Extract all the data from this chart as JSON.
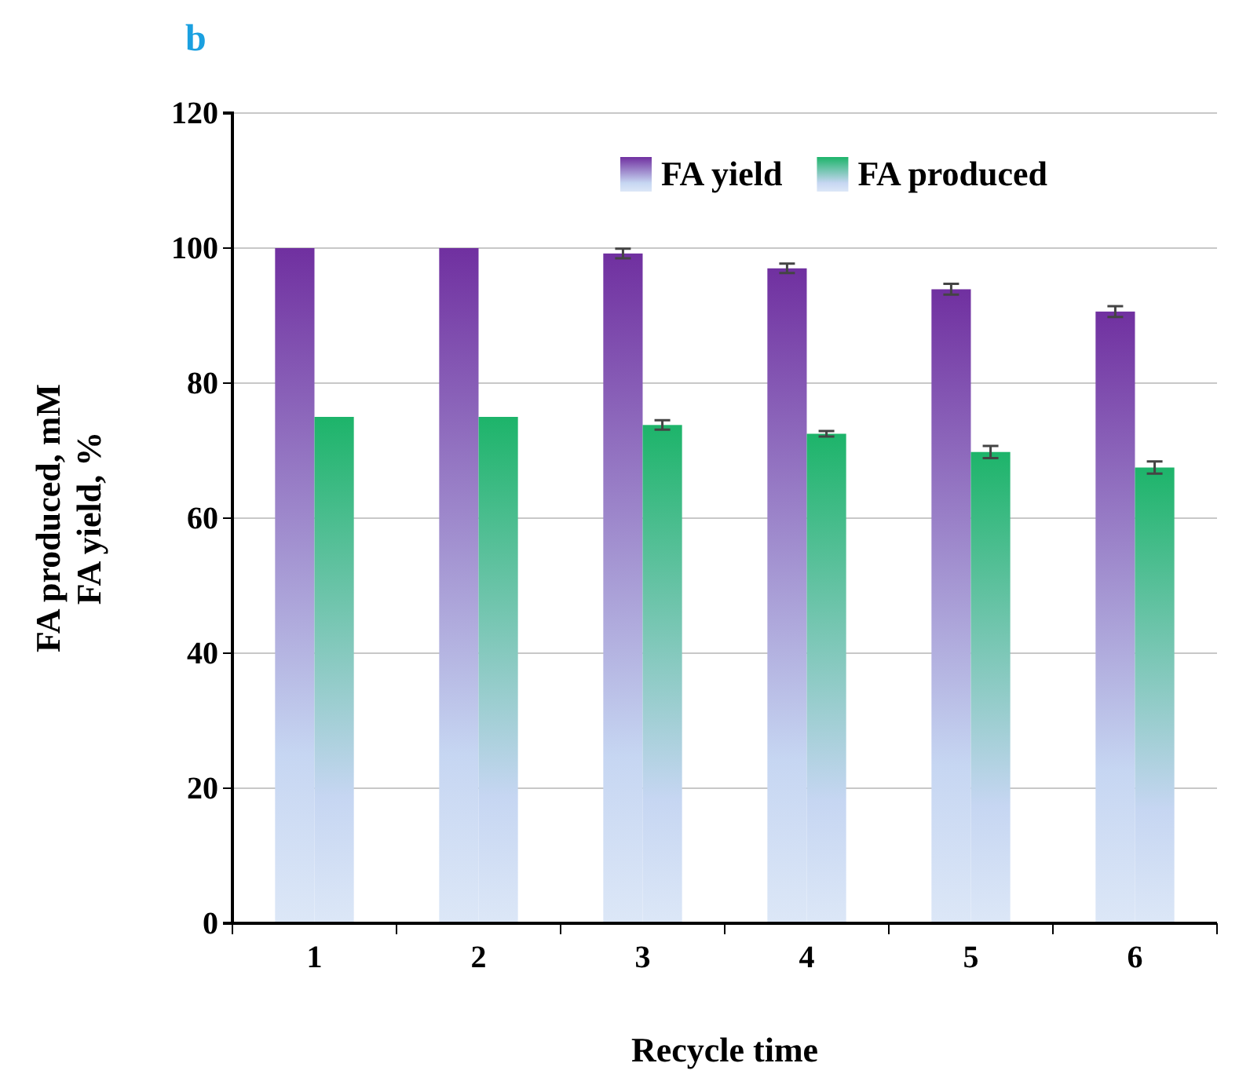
{
  "chart_data": {
    "type": "bar",
    "annotations": [
      "b"
    ],
    "xlabel": "Recycle time",
    "ylabel": "FA produced, mM\nFA yield, %",
    "categories": [
      "1",
      "2",
      "3",
      "4",
      "5",
      "6"
    ],
    "series": [
      {
        "name": "FA yield",
        "color": "#7030a0",
        "values": [
          100,
          100,
          99.2,
          97.0,
          93.9,
          90.6
        ],
        "errors": [
          null,
          null,
          0.7,
          0.7,
          0.8,
          0.8
        ]
      },
      {
        "name": "FA produced",
        "color": "#1db46a",
        "values": [
          75,
          75,
          73.8,
          72.5,
          69.8,
          67.5
        ],
        "errors": [
          null,
          null,
          0.7,
          0.4,
          0.9,
          0.9
        ]
      }
    ],
    "ylim": [
      0,
      120
    ],
    "yticks": [
      0,
      20,
      40,
      60,
      80,
      100,
      120
    ],
    "grid": "y",
    "legend": "top right"
  }
}
